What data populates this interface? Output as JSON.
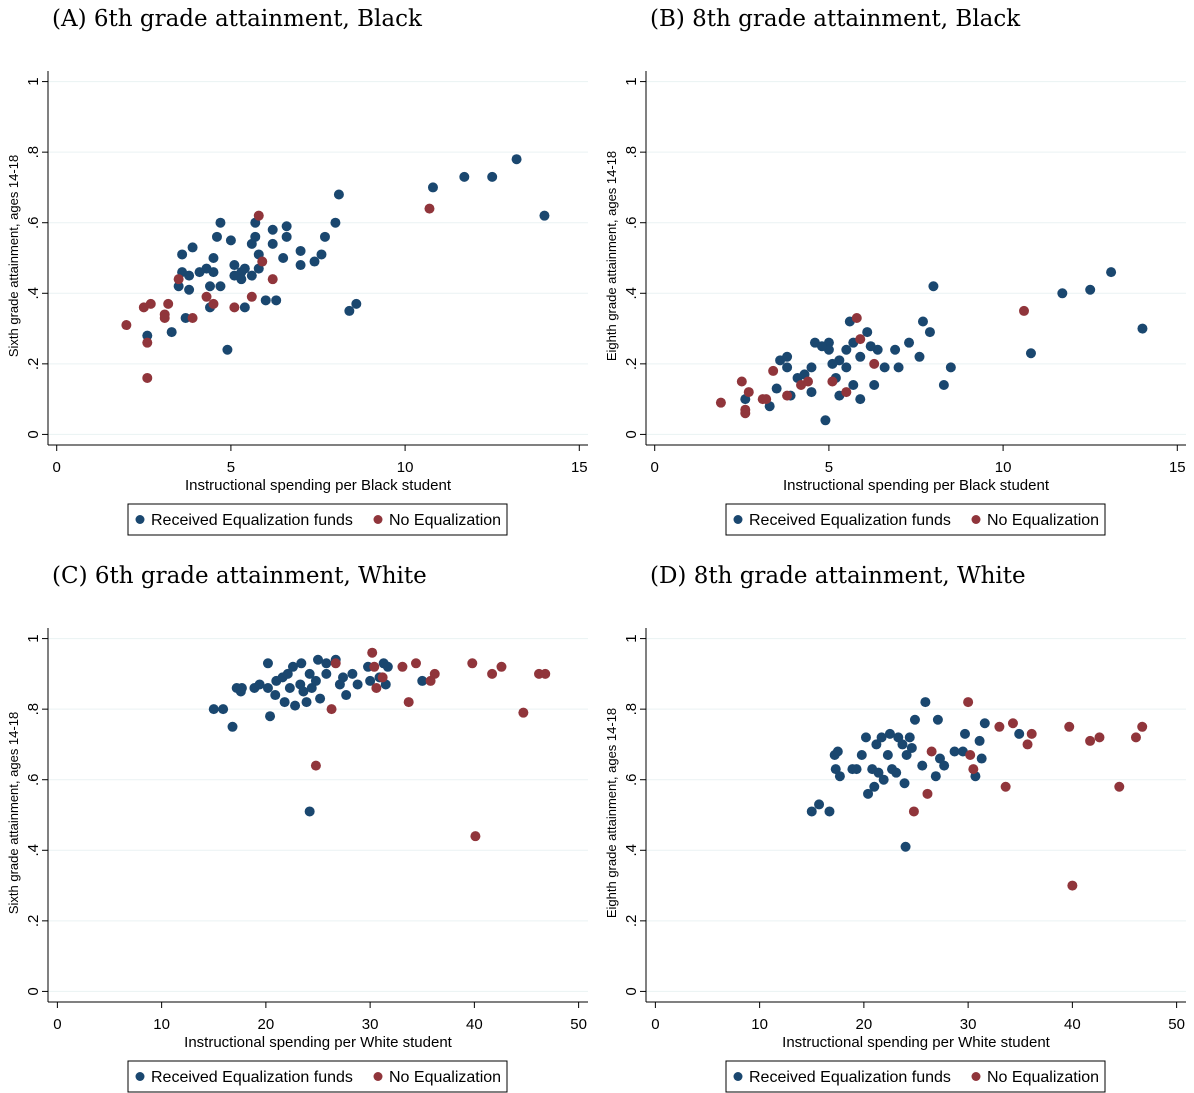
{
  "chart_data": [
    {
      "type": "scatter",
      "title": "(A) 6th grade attainment, Black",
      "xlabel": "Instructional spending per Black student",
      "ylabel": "Sixth grade attainment, ages 14-18",
      "xlim": [
        -0.25,
        15.25
      ],
      "ylim": [
        -0.03,
        1.03
      ],
      "xticks": [
        0,
        5,
        10,
        15
      ],
      "yticks": [
        0,
        {
          "value": 0.2,
          "label": ".2"
        },
        {
          "value": 0.4,
          "label": ".4"
        },
        {
          "value": 0.6,
          "label": ".6"
        },
        {
          "value": 0.8,
          "label": ".8"
        },
        1
      ],
      "grid": true,
      "legend": "bottom",
      "series": [
        {
          "name": "Received Equalization funds",
          "color": "#1a476f",
          "x": [
            13.2,
            12.5,
            11.7,
            10.8,
            14.0,
            8.1,
            8.0,
            7.7,
            7.6,
            7.4,
            7.0,
            7.0,
            6.6,
            6.6,
            6.5,
            6.2,
            6.2,
            5.7,
            5.7,
            5.8,
            5.6,
            5.8,
            5.6,
            5.4,
            5.3,
            5.1,
            5.1,
            5.3,
            5.0,
            4.7,
            4.6,
            4.5,
            4.5,
            4.7,
            4.3,
            4.1,
            4.4,
            3.9,
            3.6,
            3.8,
            3.6,
            3.5,
            3.8,
            3.7,
            3.3,
            2.6,
            4.9,
            5.4,
            6.0,
            6.3,
            8.6,
            8.4,
            4.4
          ],
          "values": [
            0.78,
            0.73,
            0.73,
            0.7,
            0.62,
            0.68,
            0.6,
            0.56,
            0.51,
            0.49,
            0.48,
            0.52,
            0.59,
            0.56,
            0.5,
            0.54,
            0.58,
            0.6,
            0.56,
            0.51,
            0.54,
            0.47,
            0.45,
            0.47,
            0.46,
            0.48,
            0.45,
            0.44,
            0.55,
            0.6,
            0.56,
            0.5,
            0.46,
            0.42,
            0.47,
            0.46,
            0.42,
            0.53,
            0.51,
            0.45,
            0.46,
            0.42,
            0.41,
            0.33,
            0.29,
            0.28,
            0.24,
            0.36,
            0.38,
            0.38,
            0.37,
            0.35,
            0.36
          ]
        },
        {
          "name": "No Equalization",
          "color": "#90353b",
          "x": [
            2.0,
            2.5,
            2.7,
            2.6,
            2.6,
            3.1,
            3.1,
            3.2,
            3.5,
            3.9,
            4.3,
            4.5,
            5.6,
            5.1,
            5.8,
            5.9,
            6.2,
            10.7
          ],
          "values": [
            0.31,
            0.36,
            0.37,
            0.26,
            0.16,
            0.34,
            0.33,
            0.37,
            0.44,
            0.33,
            0.39,
            0.37,
            0.39,
            0.36,
            0.62,
            0.49,
            0.44,
            0.64
          ]
        }
      ]
    },
    {
      "type": "scatter",
      "title": "(B) 8th grade attainment, Black",
      "xlabel": "Instructional spending per Black student",
      "ylabel": "Eighth grade attainment, ages 14-18",
      "xlim": [
        -0.25,
        15.25
      ],
      "ylim": [
        -0.03,
        1.03
      ],
      "xticks": [
        0,
        5,
        10,
        15
      ],
      "yticks": [
        0,
        {
          "value": 0.2,
          "label": ".2"
        },
        {
          "value": 0.4,
          "label": ".4"
        },
        {
          "value": 0.6,
          "label": ".6"
        },
        {
          "value": 0.8,
          "label": ".8"
        },
        1
      ],
      "grid": true,
      "legend": "bottom",
      "series": [
        {
          "name": "Received Equalization funds",
          "color": "#1a476f",
          "x": [
            13.1,
            12.5,
            11.7,
            14.0,
            10.8,
            8.0,
            7.7,
            7.9,
            7.3,
            7.6,
            8.5,
            8.3,
            7.0,
            6.9,
            6.4,
            6.6,
            6.1,
            6.2,
            6.3,
            5.9,
            5.6,
            5.7,
            5.5,
            5.3,
            5.5,
            5.1,
            5.0,
            5.0,
            4.6,
            4.8,
            4.5,
            4.3,
            4.1,
            3.8,
            3.6,
            3.8,
            3.5,
            3.3,
            2.6,
            3.9,
            4.5,
            5.2,
            5.3,
            5.9,
            4.9,
            5.7
          ],
          "values": [
            0.46,
            0.41,
            0.4,
            0.3,
            0.23,
            0.42,
            0.32,
            0.29,
            0.26,
            0.22,
            0.19,
            0.14,
            0.19,
            0.24,
            0.24,
            0.19,
            0.29,
            0.25,
            0.14,
            0.22,
            0.32,
            0.26,
            0.24,
            0.21,
            0.19,
            0.2,
            0.26,
            0.24,
            0.26,
            0.25,
            0.19,
            0.17,
            0.16,
            0.19,
            0.21,
            0.22,
            0.13,
            0.08,
            0.1,
            0.11,
            0.12,
            0.16,
            0.11,
            0.1,
            0.04,
            0.14
          ]
        },
        {
          "name": "No Equalization",
          "color": "#90353b",
          "x": [
            1.9,
            2.5,
            2.6,
            2.7,
            2.6,
            3.1,
            3.2,
            3.4,
            3.8,
            4.2,
            4.4,
            5.1,
            5.5,
            5.8,
            5.9,
            6.3,
            10.6
          ],
          "values": [
            0.09,
            0.15,
            0.07,
            0.12,
            0.06,
            0.1,
            0.1,
            0.18,
            0.11,
            0.14,
            0.15,
            0.15,
            0.12,
            0.33,
            0.27,
            0.2,
            0.35
          ]
        }
      ]
    },
    {
      "type": "scatter",
      "title": "(C) 6th grade attainment, White",
      "xlabel": "Instructional spending per White student",
      "ylabel": "Sixth grade attainment, ages 14-18",
      "xlim": [
        -0.9,
        50.9
      ],
      "ylim": [
        -0.03,
        1.03
      ],
      "xticks": [
        0,
        10,
        20,
        30,
        40,
        50
      ],
      "yticks": [
        0,
        {
          "value": 0.2,
          "label": ".2"
        },
        {
          "value": 0.4,
          "label": ".4"
        },
        {
          "value": 0.6,
          "label": ".6"
        },
        {
          "value": 0.8,
          "label": ".8"
        },
        1
      ],
      "grid": true,
      "legend": "bottom",
      "series": [
        {
          "name": "Received Equalization funds",
          "color": "#1a476f",
          "x": [
            15.0,
            15.9,
            16.8,
            17.2,
            17.6,
            17.7,
            18.9,
            19.4,
            20.2,
            20.2,
            20.4,
            21.0,
            20.9,
            21.6,
            21.8,
            22.1,
            22.3,
            22.6,
            22.8,
            23.4,
            23.3,
            23.6,
            23.9,
            24.2,
            24.4,
            25.0,
            24.8,
            25.2,
            25.8,
            25.8,
            26.7,
            27.1,
            27.4,
            27.7,
            28.3,
            28.8,
            29.8,
            30.0,
            30.9,
            31.3,
            31.7,
            31.5,
            35.0,
            24.2
          ],
          "values": [
            0.8,
            0.8,
            0.75,
            0.86,
            0.85,
            0.86,
            0.86,
            0.87,
            0.93,
            0.86,
            0.78,
            0.88,
            0.84,
            0.89,
            0.82,
            0.9,
            0.86,
            0.92,
            0.81,
            0.93,
            0.87,
            0.85,
            0.82,
            0.9,
            0.86,
            0.94,
            0.88,
            0.83,
            0.93,
            0.9,
            0.94,
            0.87,
            0.89,
            0.84,
            0.9,
            0.87,
            0.92,
            0.88,
            0.89,
            0.93,
            0.92,
            0.87,
            0.88,
            0.51
          ]
        },
        {
          "name": "No Equalization",
          "color": "#90353b",
          "x": [
            24.8,
            26.3,
            26.7,
            30.2,
            30.6,
            30.4,
            31.2,
            33.1,
            33.7,
            34.4,
            35.8,
            36.2,
            39.8,
            40.1,
            41.7,
            42.6,
            44.7,
            46.2,
            46.8
          ],
          "values": [
            0.64,
            0.8,
            0.93,
            0.96,
            0.86,
            0.92,
            0.89,
            0.92,
            0.82,
            0.93,
            0.88,
            0.9,
            0.93,
            0.44,
            0.9,
            0.92,
            0.79,
            0.9,
            0.9
          ]
        }
      ]
    },
    {
      "type": "scatter",
      "title": "(D) 8th grade attainment, White",
      "xlabel": "Instructional spending per White student",
      "ylabel": "Eighth grade attainment, ages 14-18",
      "xlim": [
        -0.9,
        50.9
      ],
      "ylim": [
        -0.03,
        1.03
      ],
      "xticks": [
        0,
        10,
        20,
        30,
        40,
        50
      ],
      "yticks": [
        0,
        {
          "value": 0.2,
          "label": ".2"
        },
        {
          "value": 0.4,
          "label": ".4"
        },
        {
          "value": 0.6,
          "label": ".6"
        },
        {
          "value": 0.8,
          "label": ".8"
        },
        1
      ],
      "grid": true,
      "legend": "bottom",
      "series": [
        {
          "name": "Received Equalization funds",
          "color": "#1a476f",
          "x": [
            15.0,
            15.7,
            16.7,
            17.2,
            17.5,
            17.3,
            17.7,
            18.9,
            19.3,
            19.8,
            20.2,
            20.4,
            20.8,
            21.0,
            21.2,
            21.4,
            21.7,
            21.9,
            22.3,
            22.5,
            22.7,
            23.1,
            23.3,
            23.7,
            23.9,
            24.1,
            24.4,
            24.6,
            24.0,
            24.9,
            25.9,
            25.6,
            26.9,
            27.1,
            27.3,
            27.7,
            28.7,
            29.5,
            29.7,
            30.7,
            31.1,
            31.3,
            31.6,
            34.9
          ],
          "values": [
            0.51,
            0.53,
            0.51,
            0.67,
            0.68,
            0.63,
            0.61,
            0.63,
            0.63,
            0.67,
            0.72,
            0.56,
            0.63,
            0.58,
            0.7,
            0.62,
            0.72,
            0.6,
            0.67,
            0.73,
            0.63,
            0.62,
            0.72,
            0.7,
            0.59,
            0.67,
            0.72,
            0.69,
            0.41,
            0.77,
            0.82,
            0.64,
            0.61,
            0.77,
            0.66,
            0.64,
            0.68,
            0.68,
            0.73,
            0.61,
            0.71,
            0.66,
            0.76,
            0.73
          ]
        },
        {
          "name": "No Equalization",
          "color": "#90353b",
          "x": [
            24.8,
            26.1,
            26.5,
            30.0,
            30.2,
            30.5,
            33.0,
            33.6,
            34.3,
            35.7,
            36.1,
            39.7,
            40.0,
            41.7,
            42.6,
            44.5,
            46.1,
            46.7
          ],
          "values": [
            0.51,
            0.56,
            0.68,
            0.82,
            0.67,
            0.63,
            0.75,
            0.58,
            0.76,
            0.7,
            0.73,
            0.75,
            0.3,
            0.71,
            0.72,
            0.58,
            0.72,
            0.75
          ]
        }
      ]
    }
  ]
}
